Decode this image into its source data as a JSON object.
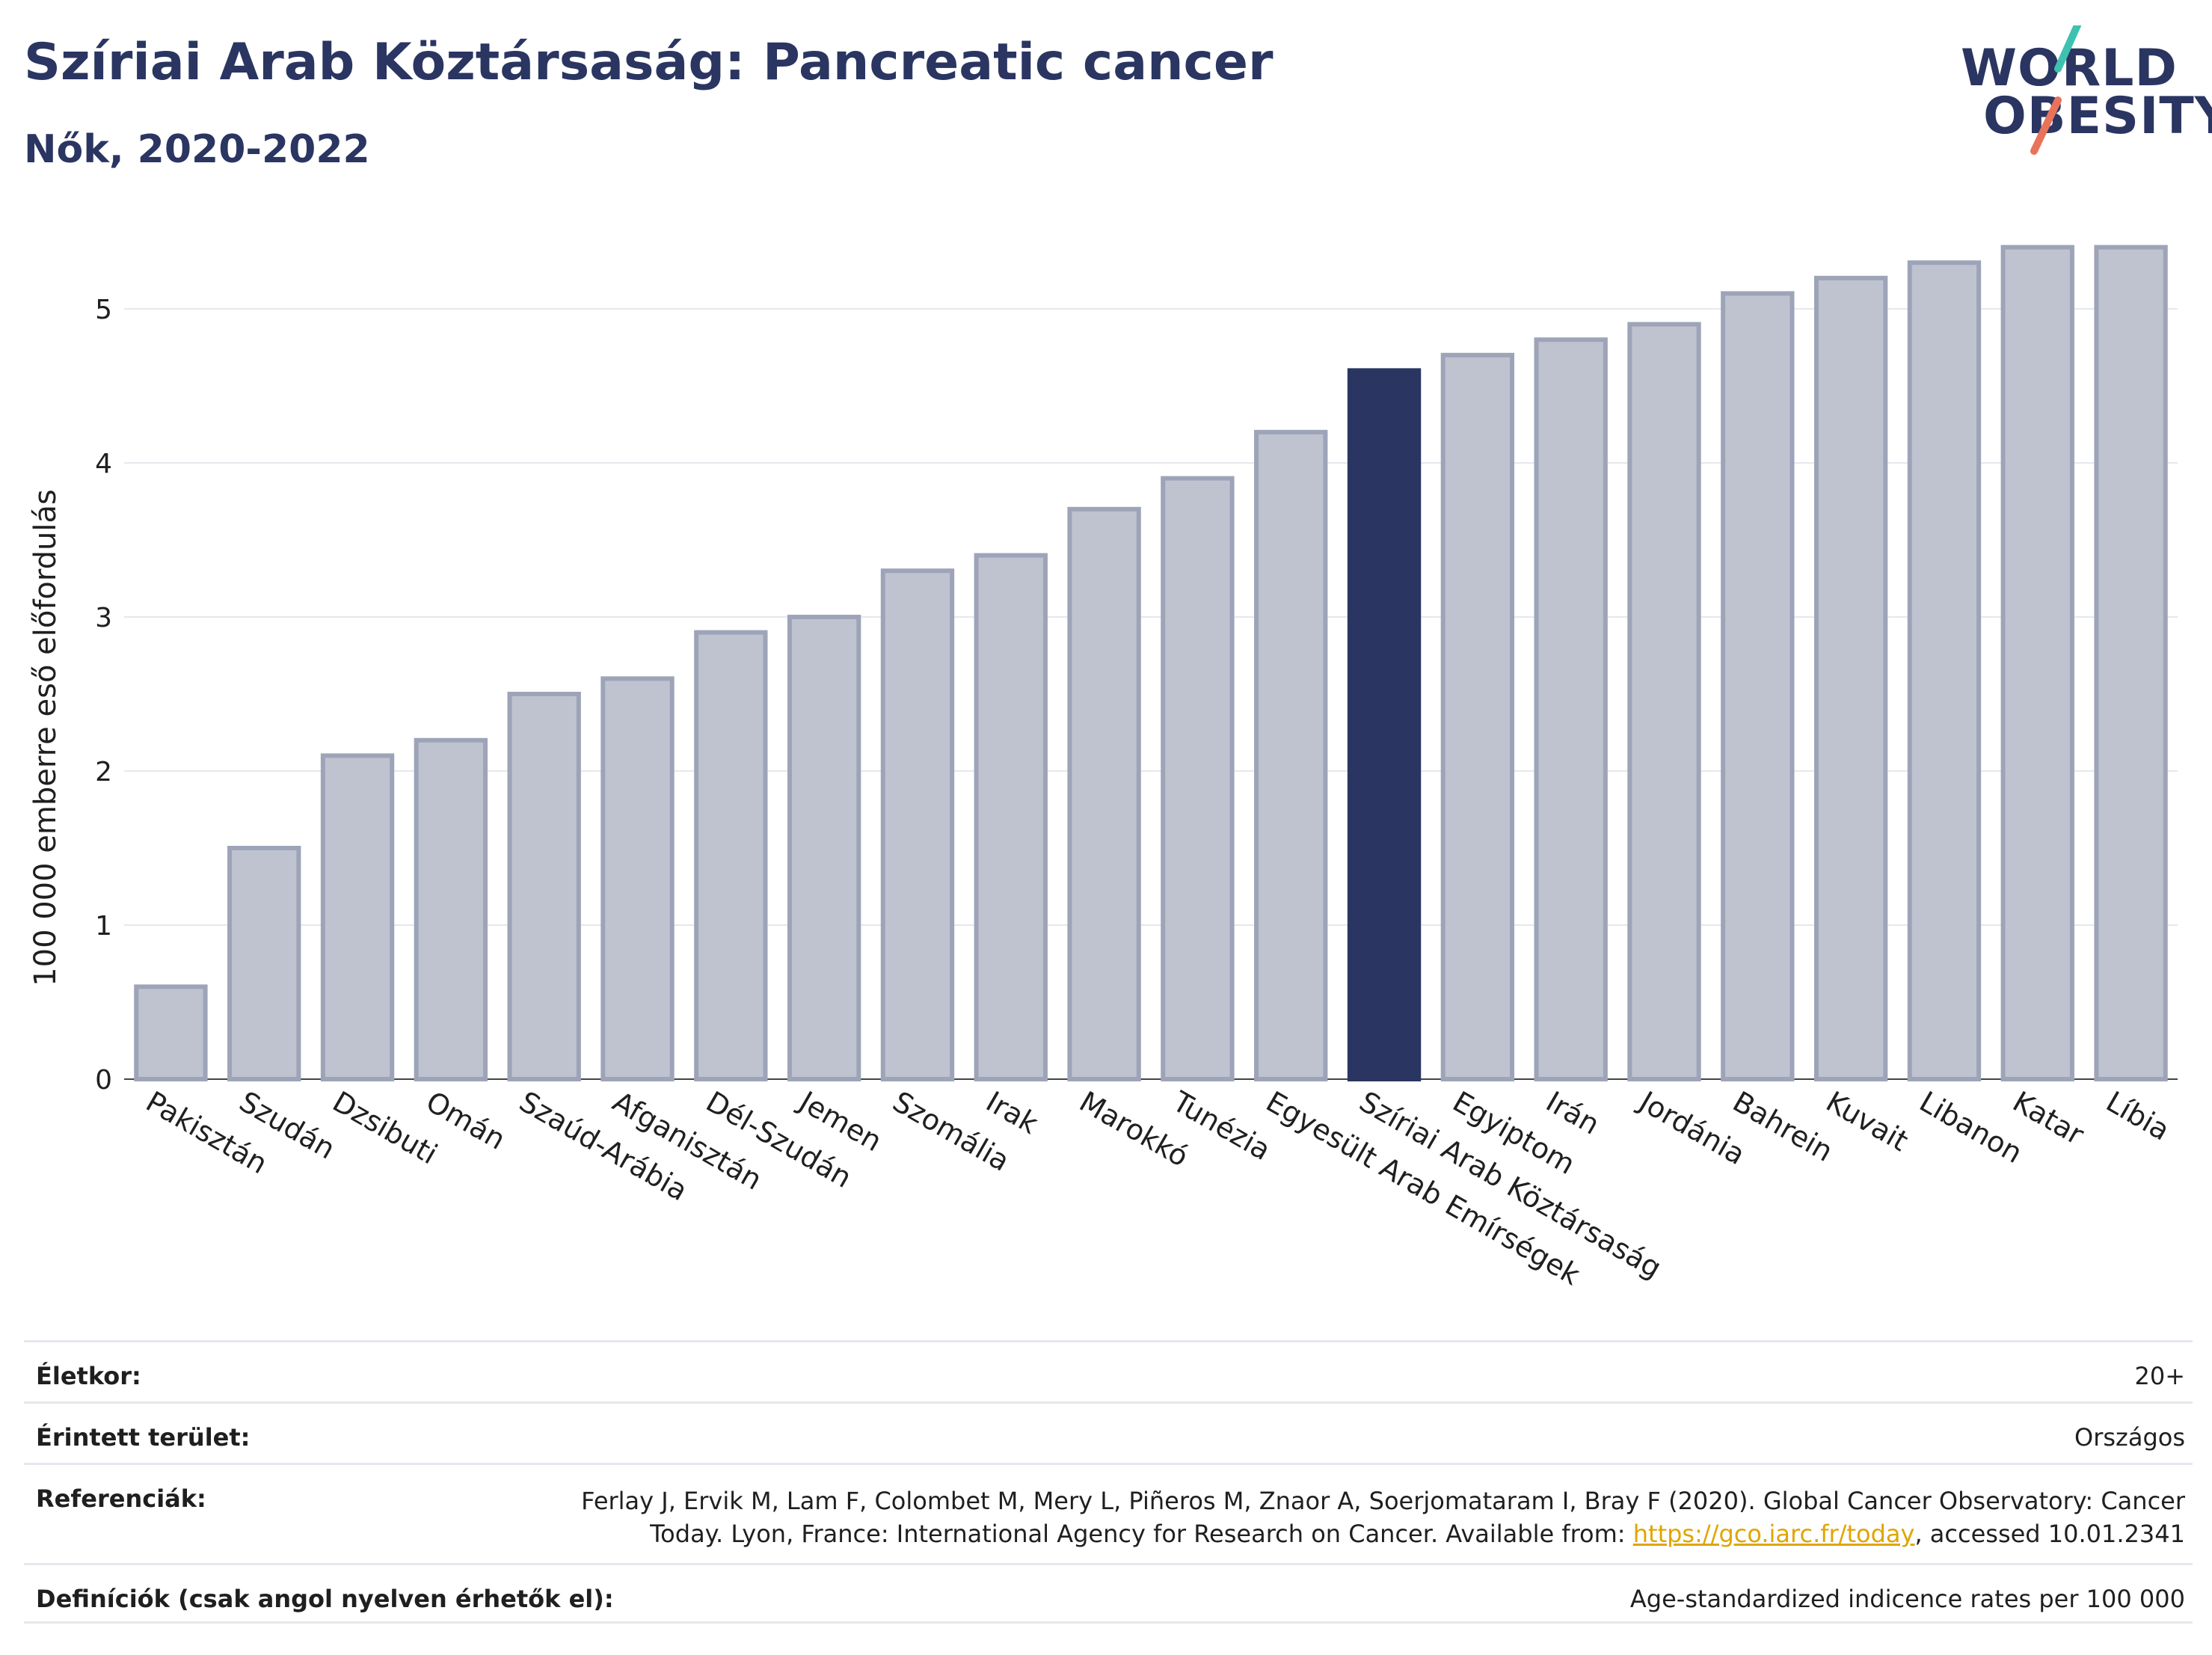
{
  "header": {
    "title": "Szíriai Arab Köztársaság: Pancreatic cancer",
    "subtitle": "Nők, 2020-2022"
  },
  "logo": {
    "line1": "WORLD",
    "line2": "OBESITY",
    "colors": {
      "text": "#2a3561",
      "accent1": "#3fc1b0",
      "accent2": "#e8735a"
    }
  },
  "chart_data": {
    "type": "bar",
    "ylabel": "100 000 emberre eső előfordulás",
    "ylim": [
      0,
      5.5
    ],
    "yticks": [
      0,
      1,
      2,
      3,
      4,
      5
    ],
    "grid": true,
    "highlight": "Szíriai Arab Köztársaság",
    "colors": {
      "bar": "#bfc3d0",
      "bar_edge": "#9ea4b8",
      "highlight": "#2a3561"
    },
    "categories": [
      "Pakisztán",
      "Szudán",
      "Dzsibuti",
      "Omán",
      "Szaúd-Arábia",
      "Afganisztán",
      "Dél-Szudán",
      "Jemen",
      "Szomália",
      "Irak",
      "Marokkó",
      "Tunézia",
      "Egyesült Arab Emírségek",
      "Szíriai Arab Köztársaság",
      "Egyiptom",
      "Irán",
      "Jordánia",
      "Bahrein",
      "Kuvait",
      "Libanon",
      "Katar",
      "Líbia"
    ],
    "values": [
      0.6,
      1.5,
      2.1,
      2.2,
      2.5,
      2.6,
      2.9,
      3.0,
      3.3,
      3.4,
      3.7,
      3.9,
      4.2,
      4.6,
      4.7,
      4.8,
      4.9,
      5.1,
      5.2,
      5.3,
      5.4,
      5.4
    ]
  },
  "info": {
    "age_label": "Életkor:",
    "age_value": "20+",
    "area_label": "Érintett terület:",
    "area_value": "Országos",
    "ref_label": "Referenciák:",
    "ref_line1": "Ferlay J, Ervik M, Lam F, Colombet M, Mery L, Piñeros M, Znaor A, Soerjomataram I, Bray F (2020). Global Cancer Observatory: Cancer",
    "ref_line2_pre": "Today. Lyon, France: International Agency for Research on Cancer. Available from: ",
    "ref_link": "https://gco.iarc.fr/today",
    "ref_line2_post": ", accessed 10.01.2341",
    "def_label": "Definíciók (csak angol nyelven érhetők el):",
    "def_value": "Age-standardized indicence rates per 100 000"
  }
}
